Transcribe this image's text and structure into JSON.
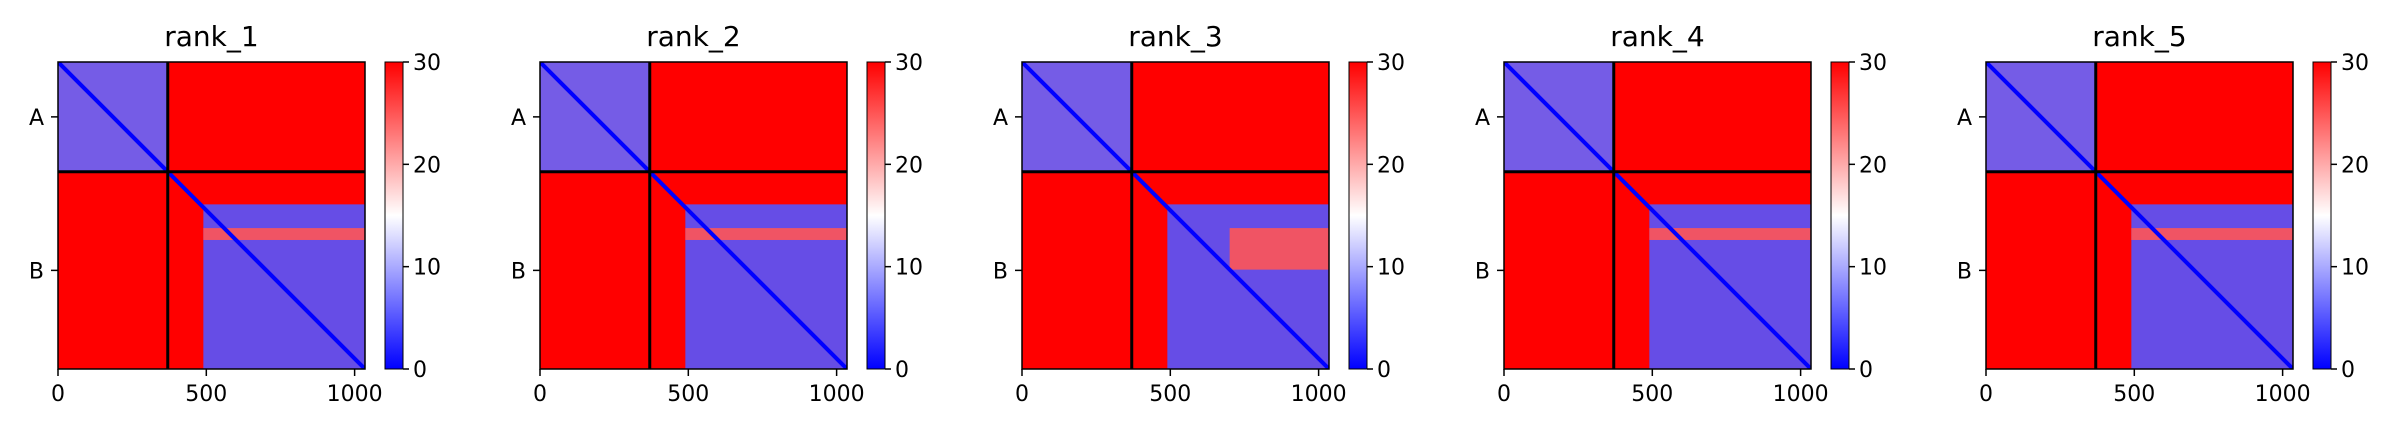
{
  "colors": {
    "high": "#ff0000",
    "mid": "#ffffff",
    "low": "#0000ff",
    "divider": "#000000"
  },
  "chart_data": [
    {
      "type": "heatmap",
      "title": "rank_1",
      "xlim": [
        0,
        1035
      ],
      "ylim": [
        0,
        1035
      ],
      "x_ticks": [
        0,
        500,
        1000
      ],
      "y_tick_labels": [
        "A",
        "B"
      ],
      "chain_boundary": 370,
      "chains": [
        {
          "name": "A",
          "start": 0,
          "end": 370
        },
        {
          "name": "B",
          "start": 370,
          "end": 1035
        }
      ],
      "colorbar": {
        "min": 0,
        "max": 30,
        "ticks": [
          0,
          10,
          20,
          30
        ],
        "colormap": "bwr"
      },
      "blue_regions": [
        {
          "x": [
            0,
            370
          ],
          "y": [
            0,
            370
          ],
          "value": 6
        },
        {
          "x": [
            490,
            1035
          ],
          "y": [
            480,
            1035
          ],
          "value": 5
        },
        {
          "x": [
            490,
            1035
          ],
          "y": [
            560,
            600
          ],
          "value": 25
        }
      ]
    },
    {
      "type": "heatmap",
      "title": "rank_2",
      "xlim": [
        0,
        1035
      ],
      "ylim": [
        0,
        1035
      ],
      "x_ticks": [
        0,
        500,
        1000
      ],
      "y_tick_labels": [
        "A",
        "B"
      ],
      "chain_boundary": 370,
      "chains": [
        {
          "name": "A",
          "start": 0,
          "end": 370
        },
        {
          "name": "B",
          "start": 370,
          "end": 1035
        }
      ],
      "colorbar": {
        "min": 0,
        "max": 30,
        "ticks": [
          0,
          10,
          20,
          30
        ],
        "colormap": "bwr"
      },
      "blue_regions": [
        {
          "x": [
            0,
            370
          ],
          "y": [
            0,
            370
          ],
          "value": 6
        },
        {
          "x": [
            490,
            1035
          ],
          "y": [
            480,
            1035
          ],
          "value": 5
        },
        {
          "x": [
            490,
            1035
          ],
          "y": [
            560,
            600
          ],
          "value": 25
        }
      ]
    },
    {
      "type": "heatmap",
      "title": "rank_3",
      "xlim": [
        0,
        1035
      ],
      "ylim": [
        0,
        1035
      ],
      "x_ticks": [
        0,
        500,
        1000
      ],
      "y_tick_labels": [
        "A",
        "B"
      ],
      "chain_boundary": 370,
      "chains": [
        {
          "name": "A",
          "start": 0,
          "end": 370
        },
        {
          "name": "B",
          "start": 370,
          "end": 1035
        }
      ],
      "colorbar": {
        "min": 0,
        "max": 30,
        "ticks": [
          0,
          10,
          20,
          30
        ],
        "colormap": "bwr"
      },
      "blue_regions": [
        {
          "x": [
            0,
            370
          ],
          "y": [
            0,
            370
          ],
          "value": 6
        },
        {
          "x": [
            490,
            1035
          ],
          "y": [
            480,
            1035
          ],
          "value": 5
        },
        {
          "x": [
            700,
            1035
          ],
          "y": [
            560,
            700
          ],
          "value": 25
        }
      ]
    },
    {
      "type": "heatmap",
      "title": "rank_4",
      "xlim": [
        0,
        1035
      ],
      "ylim": [
        0,
        1035
      ],
      "x_ticks": [
        0,
        500,
        1000
      ],
      "y_tick_labels": [
        "A",
        "B"
      ],
      "chain_boundary": 370,
      "chains": [
        {
          "name": "A",
          "start": 0,
          "end": 370
        },
        {
          "name": "B",
          "start": 370,
          "end": 1035
        }
      ],
      "colorbar": {
        "min": 0,
        "max": 30,
        "ticks": [
          0,
          10,
          20,
          30
        ],
        "colormap": "bwr"
      },
      "blue_regions": [
        {
          "x": [
            0,
            370
          ],
          "y": [
            0,
            370
          ],
          "value": 6
        },
        {
          "x": [
            490,
            1035
          ],
          "y": [
            480,
            1035
          ],
          "value": 5
        },
        {
          "x": [
            490,
            1035
          ],
          "y": [
            560,
            600
          ],
          "value": 25
        }
      ]
    },
    {
      "type": "heatmap",
      "title": "rank_5",
      "xlim": [
        0,
        1035
      ],
      "ylim": [
        0,
        1035
      ],
      "x_ticks": [
        0,
        500,
        1000
      ],
      "y_tick_labels": [
        "A",
        "B"
      ],
      "chain_boundary": 370,
      "chains": [
        {
          "name": "A",
          "start": 0,
          "end": 370
        },
        {
          "name": "B",
          "start": 370,
          "end": 1035
        }
      ],
      "colorbar": {
        "min": 0,
        "max": 30,
        "ticks": [
          0,
          10,
          20,
          30
        ],
        "colormap": "bwr"
      },
      "blue_regions": [
        {
          "x": [
            0,
            370
          ],
          "y": [
            0,
            370
          ],
          "value": 6
        },
        {
          "x": [
            490,
            1035
          ],
          "y": [
            480,
            1035
          ],
          "value": 5
        },
        {
          "x": [
            490,
            1035
          ],
          "y": [
            560,
            600
          ],
          "value": 25
        }
      ]
    }
  ]
}
